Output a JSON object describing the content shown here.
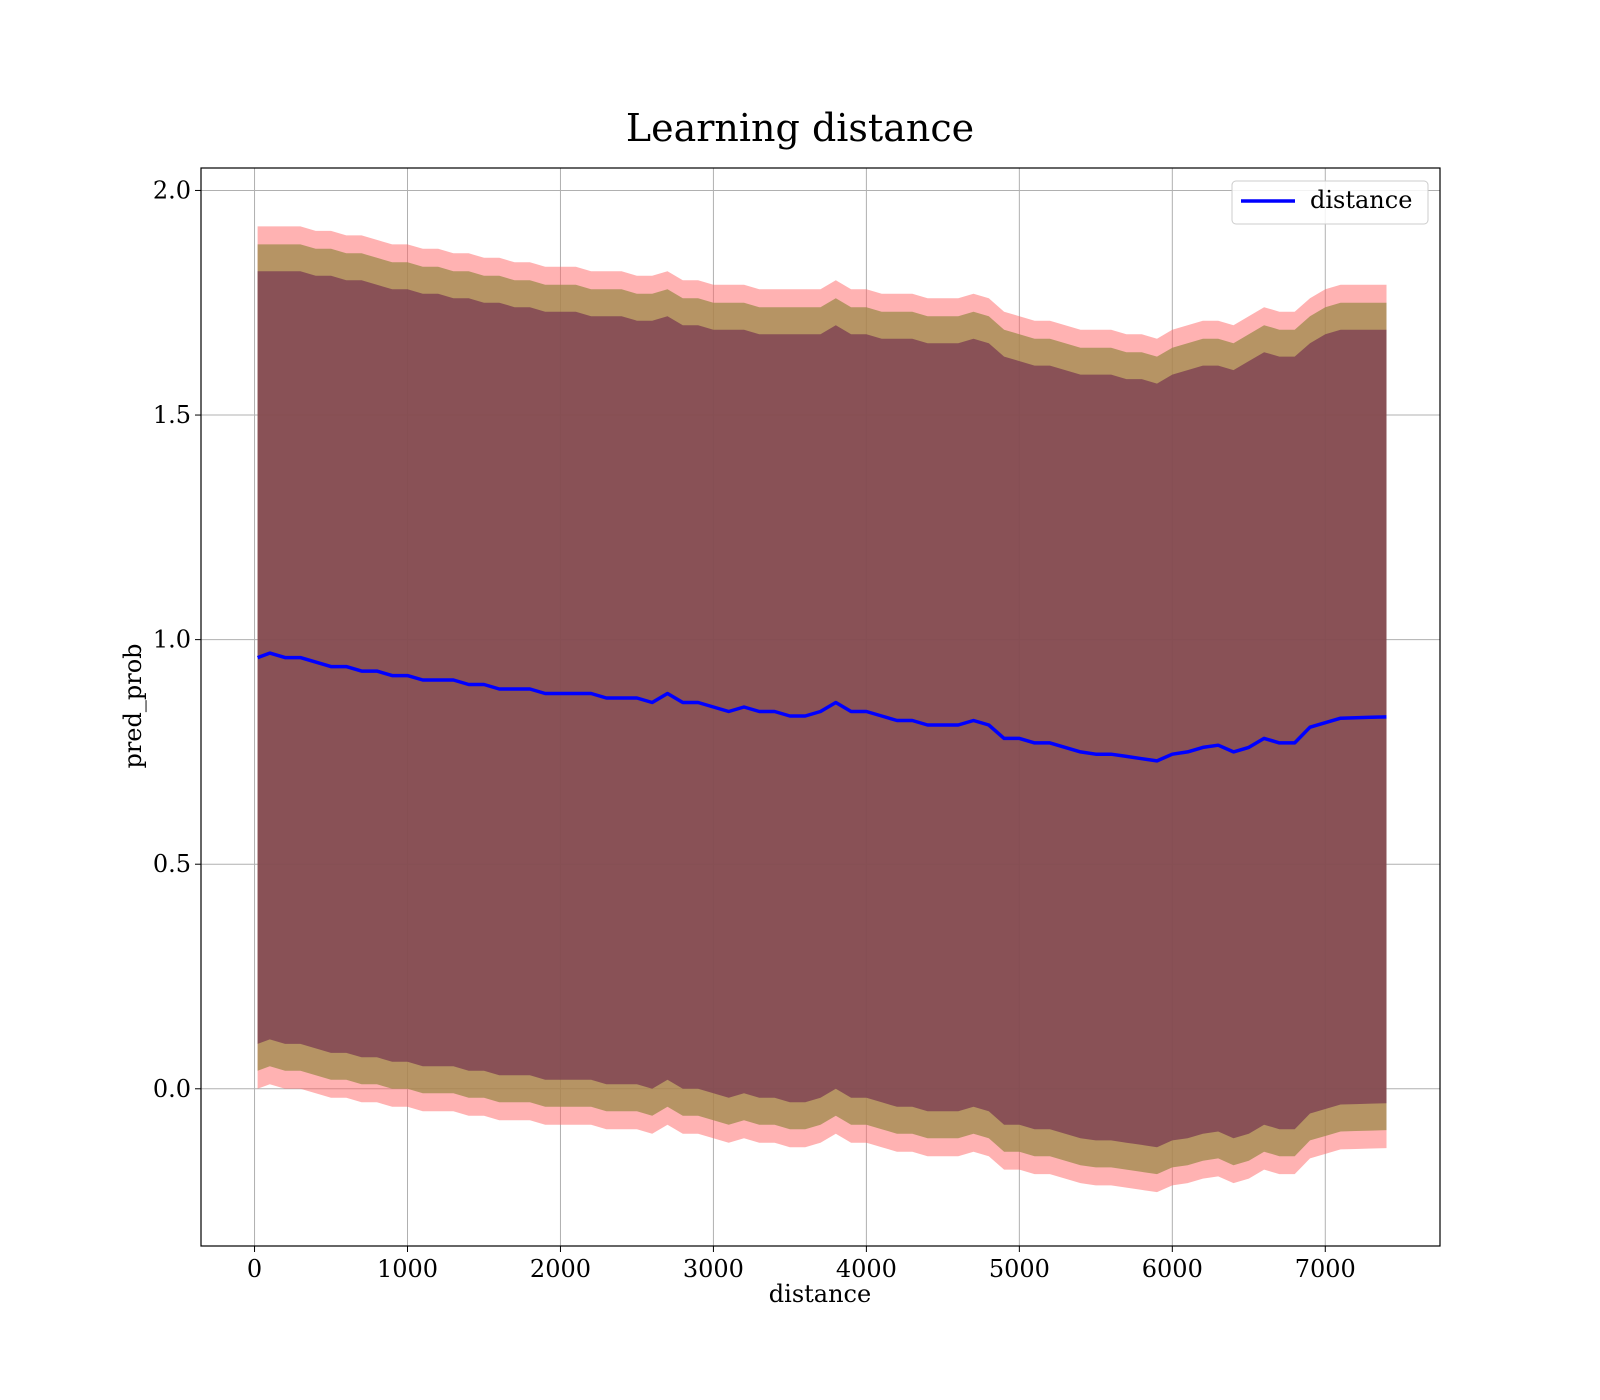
{
  "chart_data": {
    "type": "area",
    "title": "Learning distance",
    "xlabel": "distance",
    "ylabel": "pred_prob",
    "xlim": [
      -350,
      7750
    ],
    "ylim": [
      -0.35,
      2.05
    ],
    "xticks": [
      0,
      1000,
      2000,
      3000,
      4000,
      5000,
      6000,
      7000
    ],
    "yticks": [
      0.0,
      0.5,
      1.0,
      1.5,
      2.0
    ],
    "xtick_labels": [
      "0",
      "1000",
      "2000",
      "3000",
      "4000",
      "5000",
      "6000",
      "7000"
    ],
    "ytick_labels": [
      "0.0",
      "0.5",
      "1.0",
      "1.5",
      "2.0"
    ],
    "grid": true,
    "legend": {
      "position": "top-right",
      "entries": [
        "distance"
      ]
    },
    "colors": {
      "line": "#0000ff",
      "band_outer": "#ff6666",
      "band_middle": "#9e8a4a",
      "band_inner": "#7a3b52",
      "grid": "#b0b0b0"
    },
    "series": [
      {
        "name": "distance",
        "x": [
          20,
          100,
          200,
          300,
          400,
          500,
          600,
          700,
          800,
          900,
          1000,
          1100,
          1200,
          1300,
          1400,
          1500,
          1600,
          1700,
          1800,
          1900,
          2000,
          2100,
          2200,
          2300,
          2400,
          2500,
          2600,
          2700,
          2800,
          2900,
          3000,
          3100,
          3200,
          3300,
          3400,
          3500,
          3600,
          3700,
          3800,
          3900,
          4000,
          4100,
          4200,
          4300,
          4400,
          4500,
          4600,
          4700,
          4800,
          4900,
          5000,
          5100,
          5200,
          5300,
          5400,
          5500,
          5600,
          5700,
          5800,
          5900,
          6000,
          6100,
          6200,
          6300,
          6400,
          6500,
          6600,
          6700,
          6800,
          6900,
          7000,
          7100,
          7200,
          7300,
          7400
        ],
        "y": [
          0.96,
          0.97,
          0.96,
          0.96,
          0.95,
          0.94,
          0.94,
          0.93,
          0.93,
          0.92,
          0.92,
          0.91,
          0.91,
          0.91,
          0.9,
          0.9,
          0.89,
          0.89,
          0.89,
          0.88,
          0.88,
          0.88,
          0.88,
          0.87,
          0.87,
          0.87,
          0.86,
          0.88,
          0.86,
          0.86,
          0.85,
          0.84,
          0.85,
          0.84,
          0.84,
          0.83,
          0.83,
          0.84,
          0.86,
          0.84,
          0.84,
          0.83,
          0.82,
          0.82,
          0.81,
          0.81,
          0.81,
          0.82,
          0.81,
          0.78,
          0.78,
          0.77,
          0.77,
          0.76,
          0.75,
          0.745,
          0.745,
          0.74,
          0.735,
          0.73,
          0.745,
          0.75,
          0.76,
          0.765,
          0.75,
          0.76,
          0.78,
          0.77,
          0.77,
          0.805,
          0.815,
          0.825,
          0.826,
          0.827,
          0.828
        ],
        "bands": {
          "outer_upper": [
            1.92,
            1.92,
            1.92,
            1.92,
            1.91,
            1.91,
            1.9,
            1.9,
            1.89,
            1.88,
            1.88,
            1.87,
            1.87,
            1.86,
            1.86,
            1.85,
            1.85,
            1.84,
            1.84,
            1.83,
            1.83,
            1.83,
            1.82,
            1.82,
            1.82,
            1.81,
            1.81,
            1.82,
            1.8,
            1.8,
            1.79,
            1.79,
            1.79,
            1.78,
            1.78,
            1.78,
            1.78,
            1.78,
            1.8,
            1.78,
            1.78,
            1.77,
            1.77,
            1.77,
            1.76,
            1.76,
            1.76,
            1.77,
            1.76,
            1.73,
            1.72,
            1.71,
            1.71,
            1.7,
            1.69,
            1.69,
            1.69,
            1.68,
            1.68,
            1.67,
            1.69,
            1.7,
            1.71,
            1.71,
            1.7,
            1.72,
            1.74,
            1.73,
            1.73,
            1.76,
            1.78,
            1.79,
            1.79,
            1.79,
            1.79
          ],
          "middle_upper": [
            1.88,
            1.88,
            1.88,
            1.88,
            1.87,
            1.87,
            1.86,
            1.86,
            1.85,
            1.84,
            1.84,
            1.83,
            1.83,
            1.82,
            1.82,
            1.81,
            1.81,
            1.8,
            1.8,
            1.79,
            1.79,
            1.79,
            1.78,
            1.78,
            1.78,
            1.77,
            1.77,
            1.78,
            1.76,
            1.76,
            1.75,
            1.75,
            1.75,
            1.74,
            1.74,
            1.74,
            1.74,
            1.74,
            1.76,
            1.74,
            1.74,
            1.73,
            1.73,
            1.73,
            1.72,
            1.72,
            1.72,
            1.73,
            1.72,
            1.69,
            1.68,
            1.67,
            1.67,
            1.66,
            1.65,
            1.65,
            1.65,
            1.64,
            1.64,
            1.63,
            1.65,
            1.66,
            1.67,
            1.67,
            1.66,
            1.68,
            1.7,
            1.69,
            1.69,
            1.72,
            1.74,
            1.75,
            1.75,
            1.75,
            1.75
          ],
          "inner_upper": [
            1.82,
            1.82,
            1.82,
            1.82,
            1.81,
            1.81,
            1.8,
            1.8,
            1.79,
            1.78,
            1.78,
            1.77,
            1.77,
            1.76,
            1.76,
            1.75,
            1.75,
            1.74,
            1.74,
            1.73,
            1.73,
            1.73,
            1.72,
            1.72,
            1.72,
            1.71,
            1.71,
            1.72,
            1.7,
            1.7,
            1.69,
            1.69,
            1.69,
            1.68,
            1.68,
            1.68,
            1.68,
            1.68,
            1.7,
            1.68,
            1.68,
            1.67,
            1.67,
            1.67,
            1.66,
            1.66,
            1.66,
            1.67,
            1.66,
            1.63,
            1.62,
            1.61,
            1.61,
            1.6,
            1.59,
            1.59,
            1.59,
            1.58,
            1.58,
            1.57,
            1.59,
            1.6,
            1.61,
            1.61,
            1.6,
            1.62,
            1.64,
            1.63,
            1.63,
            1.66,
            1.68,
            1.69,
            1.69,
            1.69,
            1.69
          ],
          "inner_lower": [
            0.1,
            0.11,
            0.1,
            0.1,
            0.09,
            0.08,
            0.08,
            0.07,
            0.07,
            0.06,
            0.06,
            0.05,
            0.05,
            0.05,
            0.04,
            0.04,
            0.03,
            0.03,
            0.03,
            0.02,
            0.02,
            0.02,
            0.02,
            0.01,
            0.01,
            0.01,
            0.0,
            0.02,
            0.0,
            0.0,
            -0.01,
            -0.02,
            -0.01,
            -0.02,
            -0.02,
            -0.03,
            -0.03,
            -0.02,
            0.0,
            -0.02,
            -0.02,
            -0.03,
            -0.04,
            -0.04,
            -0.05,
            -0.05,
            -0.05,
            -0.04,
            -0.05,
            -0.08,
            -0.08,
            -0.09,
            -0.09,
            -0.1,
            -0.11,
            -0.115,
            -0.115,
            -0.12,
            -0.125,
            -0.13,
            -0.115,
            -0.11,
            -0.1,
            -0.095,
            -0.11,
            -0.1,
            -0.08,
            -0.09,
            -0.09,
            -0.055,
            -0.045,
            -0.035,
            -0.034,
            -0.033,
            -0.032
          ],
          "middle_lower": [
            0.04,
            0.05,
            0.04,
            0.04,
            0.03,
            0.02,
            0.02,
            0.01,
            0.01,
            0.0,
            0.0,
            -0.01,
            -0.01,
            -0.01,
            -0.02,
            -0.02,
            -0.03,
            -0.03,
            -0.03,
            -0.04,
            -0.04,
            -0.04,
            -0.04,
            -0.05,
            -0.05,
            -0.05,
            -0.06,
            -0.04,
            -0.06,
            -0.06,
            -0.07,
            -0.08,
            -0.07,
            -0.08,
            -0.08,
            -0.09,
            -0.09,
            -0.08,
            -0.06,
            -0.08,
            -0.08,
            -0.09,
            -0.1,
            -0.1,
            -0.11,
            -0.11,
            -0.11,
            -0.1,
            -0.11,
            -0.14,
            -0.14,
            -0.15,
            -0.15,
            -0.16,
            -0.17,
            -0.175,
            -0.175,
            -0.18,
            -0.185,
            -0.19,
            -0.175,
            -0.17,
            -0.16,
            -0.155,
            -0.17,
            -0.16,
            -0.14,
            -0.15,
            -0.15,
            -0.115,
            -0.105,
            -0.095,
            -0.094,
            -0.093,
            -0.092
          ],
          "outer_lower": [
            0.0,
            0.01,
            0.0,
            0.0,
            -0.01,
            -0.02,
            -0.02,
            -0.03,
            -0.03,
            -0.04,
            -0.04,
            -0.05,
            -0.05,
            -0.05,
            -0.06,
            -0.06,
            -0.07,
            -0.07,
            -0.07,
            -0.08,
            -0.08,
            -0.08,
            -0.08,
            -0.09,
            -0.09,
            -0.09,
            -0.1,
            -0.08,
            -0.1,
            -0.1,
            -0.11,
            -0.12,
            -0.11,
            -0.12,
            -0.12,
            -0.13,
            -0.13,
            -0.12,
            -0.1,
            -0.12,
            -0.12,
            -0.13,
            -0.14,
            -0.14,
            -0.15,
            -0.15,
            -0.15,
            -0.14,
            -0.15,
            -0.18,
            -0.18,
            -0.19,
            -0.19,
            -0.2,
            -0.21,
            -0.215,
            -0.215,
            -0.22,
            -0.225,
            -0.23,
            -0.215,
            -0.21,
            -0.2,
            -0.195,
            -0.21,
            -0.2,
            -0.18,
            -0.19,
            -0.19,
            -0.155,
            -0.145,
            -0.135,
            -0.134,
            -0.133,
            -0.132
          ]
        }
      }
    ]
  }
}
